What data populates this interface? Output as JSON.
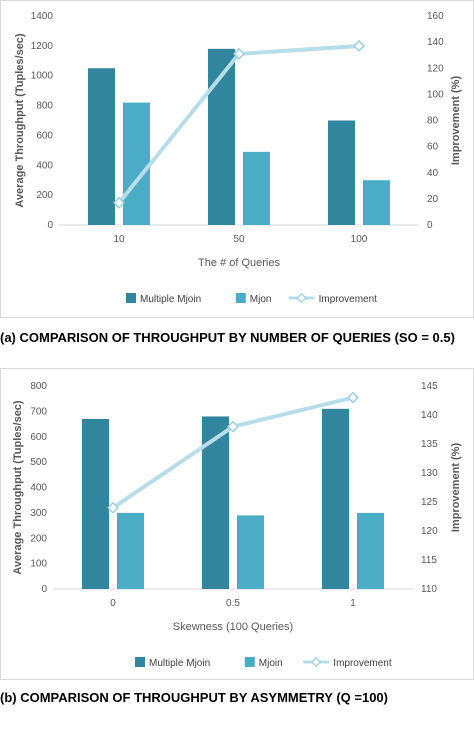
{
  "chart_data": [
    {
      "type": "bar",
      "categories": [
        "10",
        "50",
        "100"
      ],
      "series": [
        {
          "name": "Multiple Mjoin",
          "type": "bar",
          "axis": "left",
          "values": [
            1050,
            1180,
            700
          ]
        },
        {
          "name": "Mjon",
          "type": "bar",
          "axis": "left",
          "values": [
            820,
            490,
            300
          ]
        },
        {
          "name": "Improvement",
          "type": "line",
          "axis": "right",
          "values": [
            17,
            131,
            137
          ]
        }
      ],
      "xlabel": "The # of Queries",
      "ylabel": "Average Throughput (Tuples/sec)",
      "y2label": "Improvement (%)",
      "ylim": [
        0,
        1400
      ],
      "yticks": [
        "0",
        "200",
        "400",
        "600",
        "800",
        "1000",
        "1200",
        "1400"
      ],
      "y2lim": [
        0,
        160
      ],
      "y2ticks": [
        "0",
        "20",
        "40",
        "60",
        "80",
        "100",
        "120",
        "140",
        "160"
      ],
      "legend": "bottom",
      "grid": false,
      "colors": {
        "Multiple Mjoin": "#31859c",
        "Mjon": "#4bacc6",
        "Improvement": "#b7dee8"
      }
    },
    {
      "type": "bar",
      "categories": [
        "0",
        "0.5",
        "1"
      ],
      "series": [
        {
          "name": "Multiple Mjoin",
          "type": "bar",
          "axis": "left",
          "values": [
            670,
            680,
            710
          ]
        },
        {
          "name": "Mjoin",
          "type": "bar",
          "axis": "left",
          "values": [
            300,
            290,
            300
          ]
        },
        {
          "name": "Improvement",
          "type": "line",
          "axis": "right",
          "values": [
            124,
            138,
            143
          ]
        }
      ],
      "xlabel": "Skewness (100 Queries)",
      "ylabel": "Average Throughput (Tuples/sec)",
      "y2label": "Improvement (%)",
      "ylim": [
        0,
        800
      ],
      "yticks": [
        "0",
        "100",
        "200",
        "300",
        "400",
        "500",
        "600",
        "700",
        "800"
      ],
      "y2lim": [
        110,
        145
      ],
      "y2ticks": [
        "110",
        "115",
        "120",
        "125",
        "130",
        "135",
        "140",
        "145"
      ],
      "legend": "bottom",
      "grid": false,
      "colors": {
        "Multiple Mjoin": "#31859c",
        "Mjoin": "#4bacc6",
        "Improvement": "#b7dee8"
      }
    }
  ],
  "captions": {
    "a": "(a) COMPARISON OF THROUGHPUT BY NUMBER OF QUERIES (SO = 0.5)",
    "b": "(b) COMPARISON OF THROUGHPUT BY ASYMMETRY (Q =100)"
  }
}
